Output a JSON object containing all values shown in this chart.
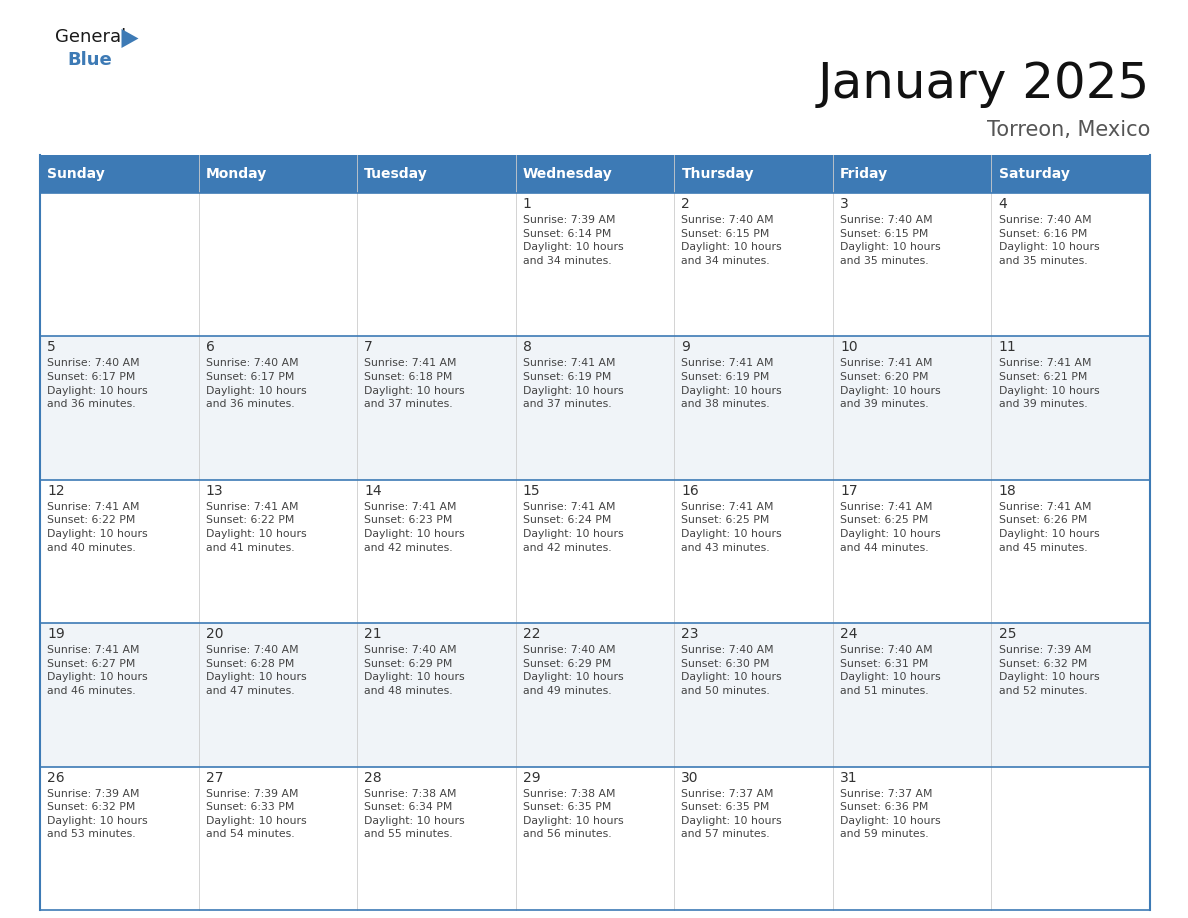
{
  "title": "January 2025",
  "subtitle": "Torreon, Mexico",
  "header_bg": "#3D7AB5",
  "header_text_color": "#FFFFFF",
  "cell_bg_light": "#F0F4F8",
  "cell_bg_white": "#FFFFFF",
  "border_color": "#3D7AB5",
  "text_color": "#444444",
  "day_number_color": "#333333",
  "weekdays": [
    "Sunday",
    "Monday",
    "Tuesday",
    "Wednesday",
    "Thursday",
    "Friday",
    "Saturday"
  ],
  "calendar_data": [
    [
      {
        "day": "",
        "info": ""
      },
      {
        "day": "",
        "info": ""
      },
      {
        "day": "",
        "info": ""
      },
      {
        "day": "1",
        "info": "Sunrise: 7:39 AM\nSunset: 6:14 PM\nDaylight: 10 hours\nand 34 minutes."
      },
      {
        "day": "2",
        "info": "Sunrise: 7:40 AM\nSunset: 6:15 PM\nDaylight: 10 hours\nand 34 minutes."
      },
      {
        "day": "3",
        "info": "Sunrise: 7:40 AM\nSunset: 6:15 PM\nDaylight: 10 hours\nand 35 minutes."
      },
      {
        "day": "4",
        "info": "Sunrise: 7:40 AM\nSunset: 6:16 PM\nDaylight: 10 hours\nand 35 minutes."
      }
    ],
    [
      {
        "day": "5",
        "info": "Sunrise: 7:40 AM\nSunset: 6:17 PM\nDaylight: 10 hours\nand 36 minutes."
      },
      {
        "day": "6",
        "info": "Sunrise: 7:40 AM\nSunset: 6:17 PM\nDaylight: 10 hours\nand 36 minutes."
      },
      {
        "day": "7",
        "info": "Sunrise: 7:41 AM\nSunset: 6:18 PM\nDaylight: 10 hours\nand 37 minutes."
      },
      {
        "day": "8",
        "info": "Sunrise: 7:41 AM\nSunset: 6:19 PM\nDaylight: 10 hours\nand 37 minutes."
      },
      {
        "day": "9",
        "info": "Sunrise: 7:41 AM\nSunset: 6:19 PM\nDaylight: 10 hours\nand 38 minutes."
      },
      {
        "day": "10",
        "info": "Sunrise: 7:41 AM\nSunset: 6:20 PM\nDaylight: 10 hours\nand 39 minutes."
      },
      {
        "day": "11",
        "info": "Sunrise: 7:41 AM\nSunset: 6:21 PM\nDaylight: 10 hours\nand 39 minutes."
      }
    ],
    [
      {
        "day": "12",
        "info": "Sunrise: 7:41 AM\nSunset: 6:22 PM\nDaylight: 10 hours\nand 40 minutes."
      },
      {
        "day": "13",
        "info": "Sunrise: 7:41 AM\nSunset: 6:22 PM\nDaylight: 10 hours\nand 41 minutes."
      },
      {
        "day": "14",
        "info": "Sunrise: 7:41 AM\nSunset: 6:23 PM\nDaylight: 10 hours\nand 42 minutes."
      },
      {
        "day": "15",
        "info": "Sunrise: 7:41 AM\nSunset: 6:24 PM\nDaylight: 10 hours\nand 42 minutes."
      },
      {
        "day": "16",
        "info": "Sunrise: 7:41 AM\nSunset: 6:25 PM\nDaylight: 10 hours\nand 43 minutes."
      },
      {
        "day": "17",
        "info": "Sunrise: 7:41 AM\nSunset: 6:25 PM\nDaylight: 10 hours\nand 44 minutes."
      },
      {
        "day": "18",
        "info": "Sunrise: 7:41 AM\nSunset: 6:26 PM\nDaylight: 10 hours\nand 45 minutes."
      }
    ],
    [
      {
        "day": "19",
        "info": "Sunrise: 7:41 AM\nSunset: 6:27 PM\nDaylight: 10 hours\nand 46 minutes."
      },
      {
        "day": "20",
        "info": "Sunrise: 7:40 AM\nSunset: 6:28 PM\nDaylight: 10 hours\nand 47 minutes."
      },
      {
        "day": "21",
        "info": "Sunrise: 7:40 AM\nSunset: 6:29 PM\nDaylight: 10 hours\nand 48 minutes."
      },
      {
        "day": "22",
        "info": "Sunrise: 7:40 AM\nSunset: 6:29 PM\nDaylight: 10 hours\nand 49 minutes."
      },
      {
        "day": "23",
        "info": "Sunrise: 7:40 AM\nSunset: 6:30 PM\nDaylight: 10 hours\nand 50 minutes."
      },
      {
        "day": "24",
        "info": "Sunrise: 7:40 AM\nSunset: 6:31 PM\nDaylight: 10 hours\nand 51 minutes."
      },
      {
        "day": "25",
        "info": "Sunrise: 7:39 AM\nSunset: 6:32 PM\nDaylight: 10 hours\nand 52 minutes."
      }
    ],
    [
      {
        "day": "26",
        "info": "Sunrise: 7:39 AM\nSunset: 6:32 PM\nDaylight: 10 hours\nand 53 minutes."
      },
      {
        "day": "27",
        "info": "Sunrise: 7:39 AM\nSunset: 6:33 PM\nDaylight: 10 hours\nand 54 minutes."
      },
      {
        "day": "28",
        "info": "Sunrise: 7:38 AM\nSunset: 6:34 PM\nDaylight: 10 hours\nand 55 minutes."
      },
      {
        "day": "29",
        "info": "Sunrise: 7:38 AM\nSunset: 6:35 PM\nDaylight: 10 hours\nand 56 minutes."
      },
      {
        "day": "30",
        "info": "Sunrise: 7:37 AM\nSunset: 6:35 PM\nDaylight: 10 hours\nand 57 minutes."
      },
      {
        "day": "31",
        "info": "Sunrise: 7:37 AM\nSunset: 6:36 PM\nDaylight: 10 hours\nand 59 minutes."
      },
      {
        "day": "",
        "info": ""
      }
    ]
  ],
  "logo_color_general": "#1a1a1a",
  "logo_color_blue": "#3D7AB5",
  "logo_triangle_color": "#3D7AB5",
  "title_fontsize": 36,
  "subtitle_fontsize": 15,
  "header_fontsize": 10,
  "day_num_fontsize": 10,
  "info_fontsize": 7.8
}
